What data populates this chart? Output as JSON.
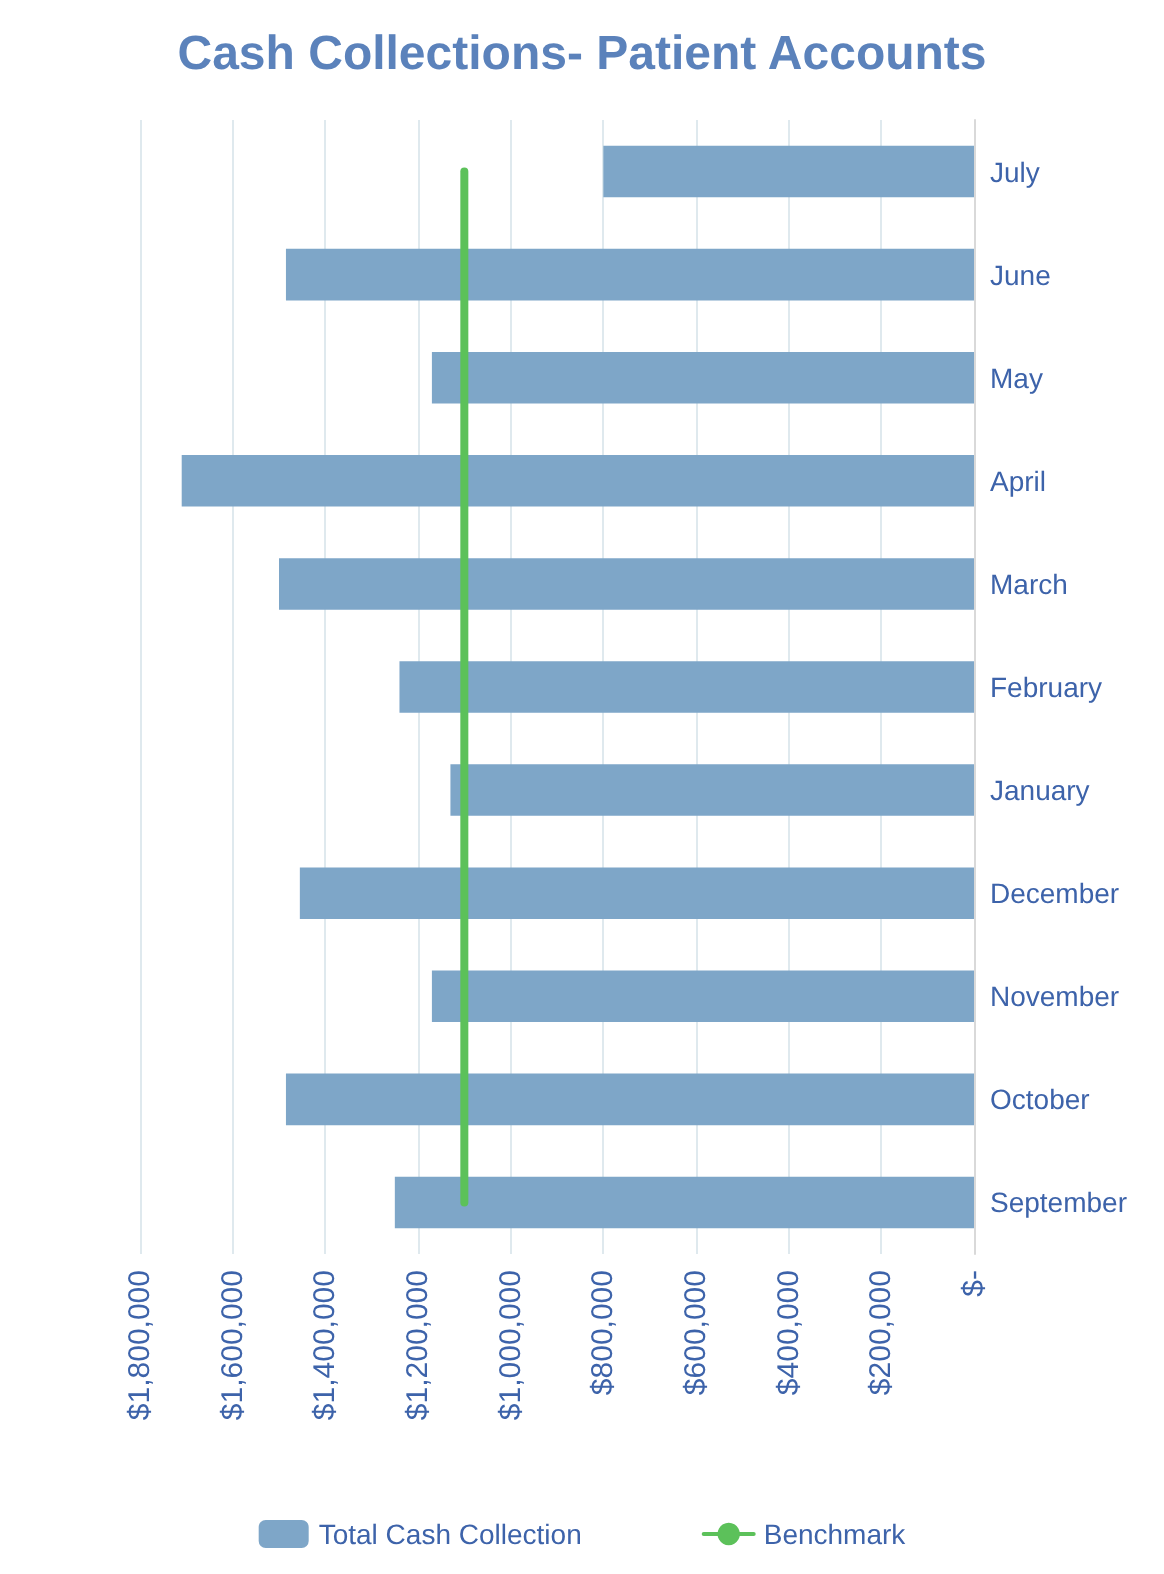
{
  "chart_data": {
    "type": "bar",
    "title": "Cash Collections- Patient Accounts",
    "orientation": "horizontal",
    "categories": [
      "July",
      "June",
      "May",
      "April",
      "March",
      "February",
      "January",
      "December",
      "November",
      "October",
      "September"
    ],
    "series": [
      {
        "name": "Total Cash Collection",
        "color": "#7ea6c8",
        "values": [
          800000,
          1485000,
          1170000,
          1710000,
          1500000,
          1240000,
          1130000,
          1455000,
          1170000,
          1485000,
          1250000
        ]
      },
      {
        "name": "Benchmark",
        "type": "line",
        "color": "#5cc15a",
        "marker": "none",
        "values": [
          1100000,
          1100000,
          1100000,
          1100000,
          1100000,
          1100000,
          1100000,
          1100000,
          1100000,
          1100000,
          1100000
        ]
      }
    ],
    "xlim": [
      1800000,
      0
    ],
    "xticks": [
      {
        "value": 1800000,
        "label": "$1,800,000"
      },
      {
        "value": 1600000,
        "label": "$1,600,000"
      },
      {
        "value": 1400000,
        "label": "$1,400,000"
      },
      {
        "value": 1200000,
        "label": "$1,200,000"
      },
      {
        "value": 1000000,
        "label": "$1,000,000"
      },
      {
        "value": 800000,
        "label": "$800,000"
      },
      {
        "value": 600000,
        "label": "$600,000"
      },
      {
        "value": 400000,
        "label": "$400,000"
      },
      {
        "value": 200000,
        "label": "$200,000"
      },
      {
        "value": 0,
        "label": "$-"
      }
    ],
    "grid": "x",
    "legend": "bottom"
  }
}
